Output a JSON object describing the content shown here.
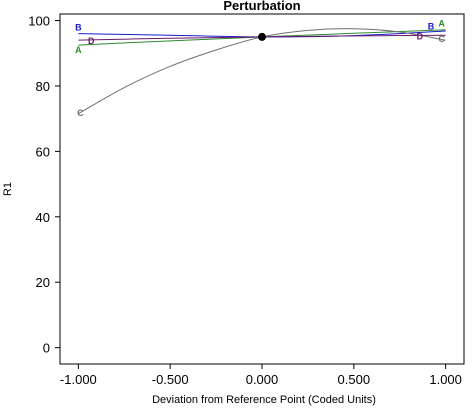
{
  "chart_data": {
    "type": "line",
    "title": "Perturbation",
    "xlabel": "Deviation from Reference Point (Coded Units)",
    "ylabel": "R1",
    "xlim": [
      -1.1,
      1.1
    ],
    "ylim": [
      -5,
      102
    ],
    "xticks": [
      -1.0,
      -0.5,
      0.0,
      0.5,
      1.0
    ],
    "xtick_labels": [
      "-1.000",
      "-0.500",
      "0.000",
      "0.500",
      "1.000"
    ],
    "yticks": [
      0,
      20,
      40,
      60,
      80,
      100
    ],
    "ytick_labels": [
      "0",
      "20",
      "40",
      "60",
      "80",
      "100"
    ],
    "grid": false,
    "reference_point": {
      "x": 0.0,
      "y": 95
    },
    "series": [
      {
        "name": "A",
        "color": "#2e8b2e",
        "x": [
          -1.0,
          -0.5,
          0.0,
          0.5,
          1.0
        ],
        "y": [
          92.5,
          93.8,
          95.0,
          96.1,
          97.2
        ]
      },
      {
        "name": "B",
        "color": "#1a1acc",
        "x": [
          -1.0,
          -0.5,
          0.0,
          0.5,
          1.0
        ],
        "y": [
          96.0,
          95.5,
          95.0,
          95.4,
          96.8
        ]
      },
      {
        "name": "C",
        "color": "#707070",
        "x": [
          -1.0,
          -0.75,
          -0.5,
          -0.25,
          0.0,
          0.25,
          0.5,
          0.75,
          1.0
        ],
        "y": [
          71.5,
          79.5,
          86.0,
          91.0,
          95.0,
          97.0,
          97.5,
          96.5,
          94.0
        ]
      },
      {
        "name": "D",
        "color": "#6a1a6a",
        "x": [
          -1.0,
          -0.5,
          0.0,
          0.5,
          1.0
        ],
        "y": [
          94.0,
          94.6,
          95.0,
          95.3,
          95.5
        ]
      }
    ]
  }
}
